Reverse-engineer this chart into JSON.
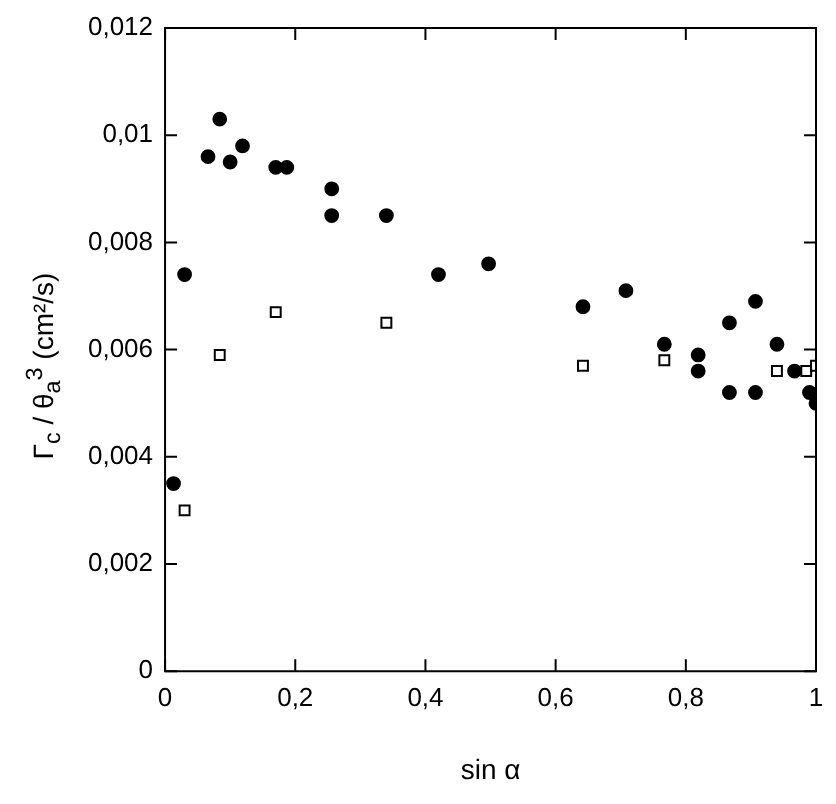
{
  "chart_data": {
    "type": "scatter",
    "xlabel": "sin α",
    "ylabel": "Γ$_{c}$ / θ$_{a}$$^{3}$ (cm²/s)",
    "xlim": [
      0,
      1
    ],
    "xticks": [
      0,
      {
        "value": 0.2,
        "label": "0,2"
      },
      {
        "value": 0.4,
        "label": "0,4"
      },
      {
        "value": 0.6,
        "label": "0,6"
      },
      {
        "value": 0.8,
        "label": "0,8"
      },
      1
    ],
    "ylim": [
      0,
      0.012
    ],
    "yticks": [
      0,
      {
        "value": 0.002,
        "label": "0,002"
      },
      {
        "value": 0.004,
        "label": "0,004"
      },
      {
        "value": 0.006,
        "label": "0,006"
      },
      {
        "value": 0.008,
        "label": "0,008"
      },
      {
        "value": 0.01,
        "label": "0,01"
      },
      {
        "value": 0.012,
        "label": "0,012"
      }
    ],
    "grid": false,
    "legend": false,
    "series": [
      {
        "color": "#000000",
        "marker": "circle",
        "x": [
          0.013,
          0.03,
          0.066,
          0.084,
          0.1,
          0.119,
          0.17,
          0.187,
          0.256,
          0.256,
          0.34,
          0.42,
          0.497,
          0.642,
          0.708,
          0.767,
          0.819,
          0.819,
          0.867,
          0.867,
          0.907,
          0.907,
          0.94,
          0.967,
          0.99,
          0.996,
          1.0
        ],
        "values": [
          0.0035,
          0.0074,
          0.0096,
          0.0103,
          0.0095,
          0.0098,
          0.0094,
          0.0094,
          0.009,
          0.0085,
          0.0085,
          0.0074,
          0.0076,
          0.0068,
          0.0071,
          0.0061,
          0.0059,
          0.0056,
          0.0065,
          0.0052,
          0.0069,
          0.0052,
          0.0061,
          0.0056,
          0.0052,
          null,
          0.005
        ]
      },
      {
        "color": "#000000",
        "marker": "square",
        "x": [
          0.03,
          0.084,
          0.17,
          0.34,
          0.642,
          0.767,
          0.94,
          0.985,
          1.0
        ],
        "values": [
          0.003,
          0.0059,
          0.0067,
          0.0065,
          0.0057,
          0.0058,
          0.0056,
          0.0056,
          0.0057
        ]
      }
    ]
  }
}
